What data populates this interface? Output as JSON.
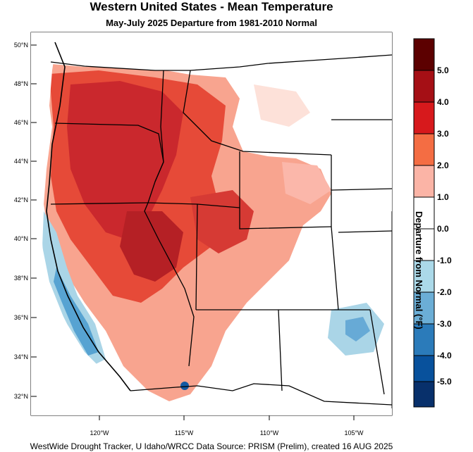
{
  "title": "Western United States - Mean Temperature",
  "subtitle": "May-July 2025  Departure from 1981-2010 Normal",
  "credit": "WestWide Drought Tracker, U Idaho/WRCC Data Source: PRISM (Prelim), created 16 AUG 2025",
  "colorbar": {
    "label": "Departure from Normal (°F)",
    "ticks": [
      "5.0",
      "4.0",
      "3.0",
      "2.0",
      "1.0",
      "0.0",
      "-1.0",
      "-2.0",
      "-3.0",
      "-4.0",
      "-5.0"
    ],
    "colors": [
      "#5c0000",
      "#a50f15",
      "#d7191c",
      "#f46d43",
      "#fbb4a6",
      "#ffffff",
      "#ffffff",
      "#abd9e9",
      "#6baed6",
      "#2b7bba",
      "#08519c",
      "#08306b"
    ]
  },
  "map": {
    "lat_labels": [
      "50°N",
      "48°N",
      "46°N",
      "44°N",
      "42°N",
      "40°N",
      "38°N",
      "36°N",
      "34°N",
      "32°N"
    ],
    "lon_labels": [
      "120°W",
      "115°W",
      "110°W",
      "105°W"
    ]
  }
}
